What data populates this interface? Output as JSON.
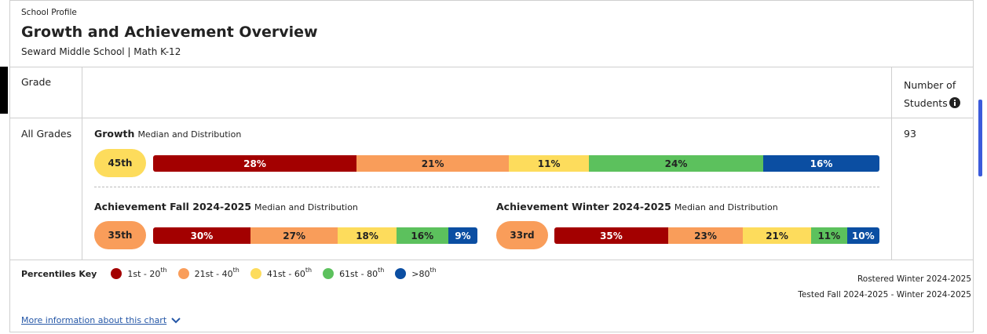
{
  "header": {
    "eyebrow": "School Profile",
    "title": "Growth and Achievement Overview",
    "subtitle": "Seward Middle School | Math K-12"
  },
  "table": {
    "columns": [
      "Grade",
      "Number of Students"
    ],
    "rows": [
      {
        "grade": "All Grades",
        "students": 93
      }
    ]
  },
  "growth": {
    "title": "Growth",
    "subtitle": "Median and Distribution",
    "median": "45th",
    "median_color": "#fddc5c",
    "values": [
      28,
      21,
      11,
      24,
      16
    ],
    "value_labels": [
      "28%",
      "21%",
      "11%",
      "24%",
      "16%"
    ]
  },
  "achievement": [
    {
      "title": "Achievement Fall 2024-2025",
      "subtitle": "Median and Distribution",
      "median": "35th",
      "median_color": "#f99d5a",
      "values": [
        30,
        27,
        18,
        16,
        9
      ],
      "value_labels": [
        "30%",
        "27%",
        "18%",
        "16%",
        "9%"
      ]
    },
    {
      "title": "Achievement Winter 2024-2025",
      "subtitle": "Median and Distribution",
      "median": "33rd",
      "median_color": "#f99d5a",
      "values": [
        35,
        23,
        21,
        11,
        10
      ],
      "value_labels": [
        "35%",
        "23%",
        "21%",
        "11%",
        "10%"
      ]
    }
  ],
  "key": {
    "title": "Percentiles Key",
    "items": [
      {
        "label": "1st - 20",
        "sup": "th",
        "color": "#a30000"
      },
      {
        "label": "21st - 40",
        "sup": "th",
        "color": "#f99d5a"
      },
      {
        "label": "41st - 60",
        "sup": "th",
        "color": "#fddc5c"
      },
      {
        "label": "61st - 80",
        "sup": "th",
        "color": "#5cc15d"
      },
      {
        "label": ">80",
        "sup": "th",
        "color": "#0b4ea2"
      }
    ]
  },
  "notes": [
    "Rostered Winter 2024-2025",
    "Tested Fall 2024-2025 - Winter 2024-2025"
  ],
  "link": "More information about this chart"
}
